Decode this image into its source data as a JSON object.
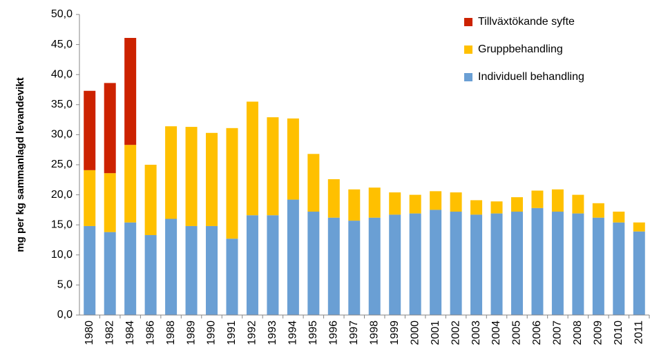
{
  "chart_data": {
    "type": "stacked_bar",
    "y_label": "mg per kg sammanlagd levandevikt",
    "categories": [
      "1980",
      "1982",
      "1984",
      "1986",
      "1988",
      "1989",
      "1990",
      "1991",
      "1992",
      "1993",
      "1994",
      "1995",
      "1996",
      "1997",
      "1998",
      "1999",
      "2000",
      "2001",
      "2002",
      "2003",
      "2004",
      "2005",
      "2006",
      "2007",
      "2008",
      "2009",
      "2010",
      "2011"
    ],
    "series": [
      {
        "name": "Individuell behandling",
        "color": "#6a9fd4",
        "values": [
          14.8,
          13.8,
          15.4,
          13.3,
          16.0,
          14.8,
          14.8,
          12.7,
          16.6,
          16.6,
          19.2,
          17.2,
          16.2,
          15.7,
          16.2,
          16.7,
          16.9,
          17.5,
          17.2,
          16.7,
          16.9,
          17.2,
          17.8,
          17.2,
          16.9,
          16.2,
          15.4,
          13.9
        ]
      },
      {
        "name": "Gruppbehandling",
        "color": "#ffc000",
        "values": [
          9.3,
          9.8,
          12.9,
          11.7,
          15.4,
          16.5,
          15.5,
          18.4,
          18.9,
          16.3,
          13.5,
          9.6,
          6.4,
          5.2,
          5.0,
          3.7,
          3.1,
          3.1,
          3.2,
          2.4,
          2.0,
          2.4,
          2.9,
          3.7,
          3.1,
          2.4,
          1.8,
          1.5
        ]
      },
      {
        "name": "Tillväxtökande syfte",
        "color": "#cc2200",
        "values": [
          13.2,
          15.0,
          17.8,
          0,
          0,
          0,
          0,
          0,
          0,
          0,
          0,
          0,
          0,
          0,
          0,
          0,
          0,
          0,
          0,
          0,
          0,
          0,
          0,
          0,
          0,
          0,
          0,
          0
        ]
      }
    ],
    "ylim": [
      0,
      50
    ],
    "yticks": [
      {
        "value": 0,
        "label": "0,0"
      },
      {
        "value": 5,
        "label": "5,0"
      },
      {
        "value": 10,
        "label": "10,0"
      },
      {
        "value": 15,
        "label": "15,0"
      },
      {
        "value": 20,
        "label": "20,0"
      },
      {
        "value": 25,
        "label": "25,0"
      },
      {
        "value": 30,
        "label": "30,0"
      },
      {
        "value": 35,
        "label": "35,0"
      },
      {
        "value": 40,
        "label": "40,0"
      },
      {
        "value": 45,
        "label": "45,0"
      },
      {
        "value": 50,
        "label": "50,0"
      }
    ],
    "legend": "top-right"
  }
}
